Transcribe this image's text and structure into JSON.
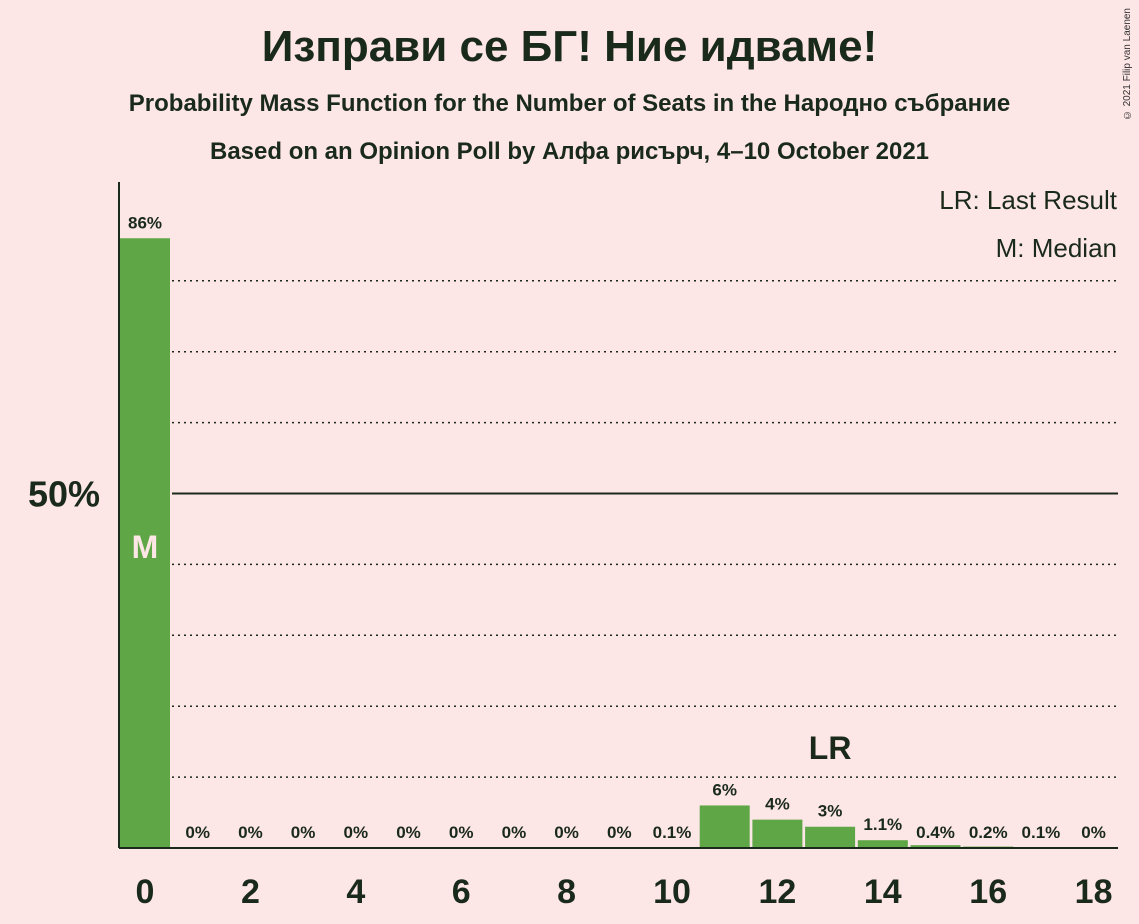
{
  "title": "Изправи се БГ! Ние идваме!",
  "subtitle": "Probability Mass Function for the Number of Seats in the Народно събрание",
  "subtitle2": "Based on an Opinion Poll by Алфа рисърч, 4–10 October 2021",
  "copyright": "© 2021 Filip van Laenen",
  "legend": {
    "last_result": "LR: Last Result",
    "median": "M: Median"
  },
  "colors": {
    "bar": "#5ea646",
    "background": "#fde6e6",
    "text": "#1a2a1a"
  },
  "chart_data": {
    "type": "bar",
    "x": [
      0,
      1,
      2,
      3,
      4,
      5,
      6,
      7,
      8,
      9,
      10,
      11,
      12,
      13,
      14,
      15,
      16,
      17,
      18
    ],
    "values": [
      86,
      0,
      0,
      0,
      0,
      0,
      0,
      0,
      0,
      0,
      0.1,
      6,
      4,
      3,
      1.1,
      0.4,
      0.2,
      0.1,
      0
    ],
    "data_labels": [
      "86%",
      "0%",
      "0%",
      "0%",
      "0%",
      "0%",
      "0%",
      "0%",
      "0%",
      "0%",
      "0.1%",
      "6%",
      "4%",
      "3%",
      "1.1%",
      "0.4%",
      "0.2%",
      "0.1%",
      "0%"
    ],
    "x_tick_labels": [
      "0",
      "2",
      "4",
      "6",
      "8",
      "10",
      "12",
      "14",
      "16",
      "18"
    ],
    "y_tick_labels": [
      "50%"
    ],
    "ylim": [
      0,
      100
    ],
    "median_seat": 0,
    "median_label": "M",
    "last_result_seat": 13,
    "last_result_label": "LR",
    "gridlines": "dotted every 10%, solid at 50%"
  }
}
